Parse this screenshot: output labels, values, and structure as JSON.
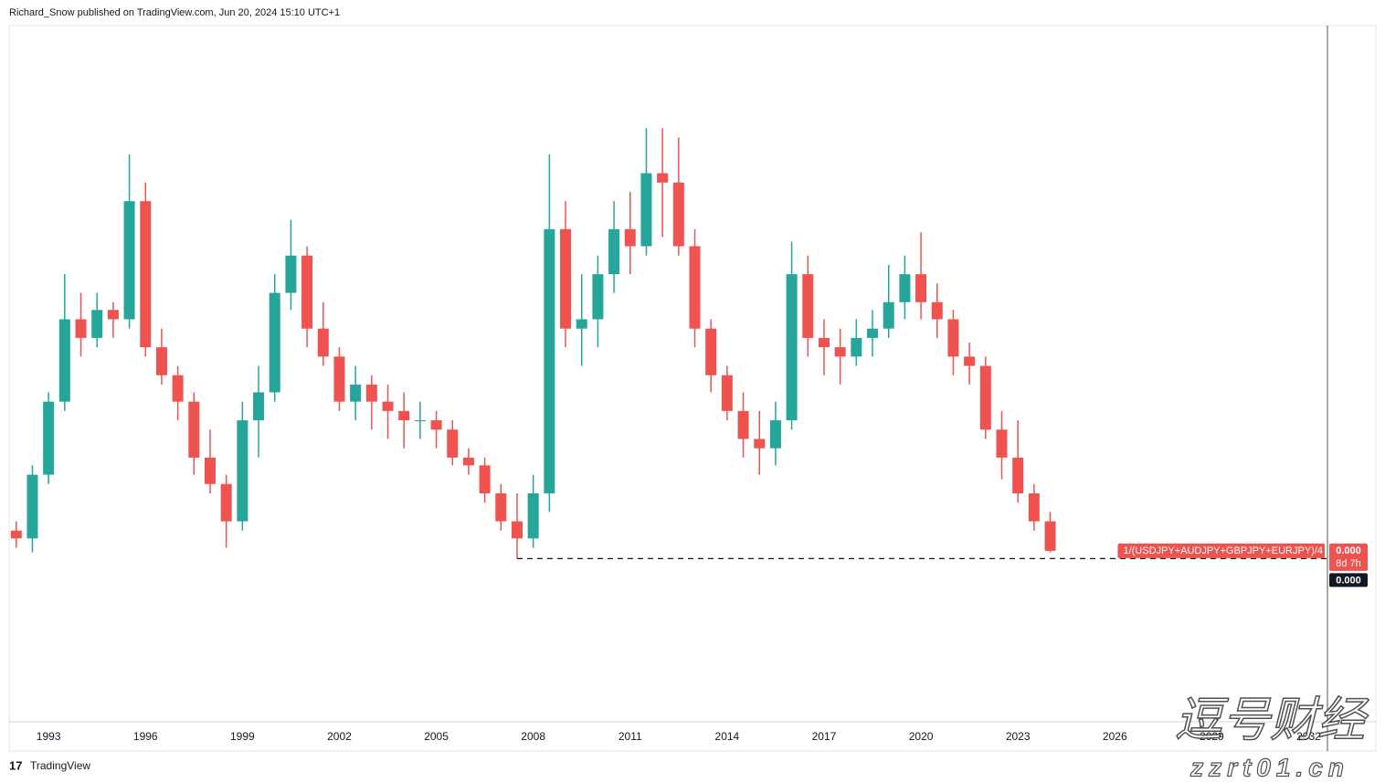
{
  "header": {
    "text": "Richard_Snow published on TradingView.com, Jun 20, 2024 15:10 UTC+1"
  },
  "chart_data": {
    "type": "candlestick",
    "x": [
      1992,
      1992.5,
      1993,
      1993.5,
      1994,
      1994.5,
      1995,
      1995.5,
      1996,
      1996.5,
      1997,
      1997.5,
      1998,
      1998.5,
      1999,
      1999.5,
      2000,
      2000.5,
      2001,
      2001.5,
      2002,
      2002.5,
      2003,
      2003.5,
      2004,
      2004.5,
      2005,
      2005.5,
      2006,
      2006.5,
      2007,
      2007.5,
      2008,
      2008.5,
      2009,
      2009.5,
      2010,
      2010.5,
      2011,
      2011.5,
      2012,
      2012.5,
      2013,
      2013.5,
      2014,
      2014.5,
      2015,
      2015.5,
      2016,
      2016.5,
      2017,
      2017.5,
      2018,
      2018.5,
      2019,
      2019.5,
      2020,
      2020.5,
      2021,
      2021.5,
      2022,
      2022.5,
      2023,
      2023.5,
      2024
    ],
    "open": [
      0.000404,
      0.000399,
      0.00044,
      0.000487,
      0.00054,
      0.000528,
      0.000546,
      0.00054,
      0.000616,
      0.000522,
      0.000504,
      0.000487,
      0.000451,
      0.000434,
      0.00041,
      0.000475,
      0.000493,
      0.000557,
      0.000581,
      0.000534,
      0.000516,
      0.000487,
      0.000498,
      0.000487,
      0.000481,
      0.000475,
      0.000475,
      0.000469,
      0.000451,
      0.000446,
      0.000428,
      0.00041,
      0.000399,
      0.000428,
      0.000598,
      0.000534,
      0.00054,
      0.000569,
      0.000598,
      0.000587,
      0.000634,
      0.000628,
      0.000587,
      0.000534,
      0.000504,
      0.000481,
      0.000463,
      0.000457,
      0.000475,
      0.000569,
      0.000528,
      0.000522,
      0.000516,
      0.000528,
      0.000534,
      0.000551,
      0.000569,
      0.000551,
      0.00054,
      0.000516,
      0.00051,
      0.000469,
      0.000451,
      0.000428,
      0.00041
    ],
    "high": [
      0.00041,
      0.000446,
      0.000493,
      0.000569,
      0.000557,
      0.000557,
      0.000551,
      0.000646,
      0.000628,
      0.000534,
      0.00051,
      0.000493,
      0.000469,
      0.00044,
      0.000487,
      0.00051,
      0.000569,
      0.000604,
      0.000587,
      0.000551,
      0.000522,
      0.00051,
      0.000504,
      0.000498,
      0.000493,
      0.000487,
      0.000481,
      0.000475,
      0.000457,
      0.000451,
      0.000434,
      0.000428,
      0.00044,
      0.000646,
      0.000616,
      0.000569,
      0.000581,
      0.000616,
      0.000622,
      0.000663,
      0.000663,
      0.000657,
      0.000598,
      0.00054,
      0.00051,
      0.000493,
      0.000481,
      0.000487,
      0.00059,
      0.000581,
      0.00054,
      0.000534,
      0.00054,
      0.000546,
      0.000575,
      0.000581,
      0.000596,
      0.000563,
      0.000546,
      0.000525,
      0.000516,
      0.000481,
      0.000475,
      0.000434,
      0.000416
    ],
    "low": [
      0.000393,
      0.00039,
      0.000434,
      0.000481,
      0.000516,
      0.000522,
      0.000528,
      0.000534,
      0.000516,
      0.000498,
      0.000475,
      0.00044,
      0.000428,
      0.000393,
      0.000404,
      0.000451,
      0.000487,
      0.000546,
      0.000522,
      0.00051,
      0.000481,
      0.000475,
      0.000469,
      0.000463,
      0.000457,
      0.000463,
      0.000457,
      0.000446,
      0.00044,
      0.000422,
      0.000404,
      0.000386,
      0.000393,
      0.000416,
      0.000522,
      0.00051,
      0.000522,
      0.000557,
      0.000569,
      0.000581,
      0.000593,
      0.000581,
      0.000522,
      0.000493,
      0.000475,
      0.000451,
      0.00044,
      0.000446,
      0.000469,
      0.000516,
      0.000504,
      0.000498,
      0.00051,
      0.000516,
      0.000528,
      0.00054,
      0.00054,
      0.000528,
      0.000504,
      0.000498,
      0.000463,
      0.000437,
      0.000422,
      0.000404,
      0.00039
    ],
    "close": [
      0.000399,
      0.00044,
      0.000487,
      0.00054,
      0.000528,
      0.000546,
      0.00054,
      0.000616,
      0.000522,
      0.000504,
      0.000487,
      0.000451,
      0.000434,
      0.00041,
      0.000475,
      0.000493,
      0.000557,
      0.000581,
      0.000534,
      0.000516,
      0.000487,
      0.000498,
      0.000487,
      0.000481,
      0.000475,
      0.000475,
      0.000469,
      0.000451,
      0.000446,
      0.000428,
      0.00041,
      0.000399,
      0.000428,
      0.000598,
      0.000534,
      0.00054,
      0.000569,
      0.000598,
      0.000587,
      0.000634,
      0.000628,
      0.000587,
      0.000534,
      0.000504,
      0.000481,
      0.000463,
      0.000457,
      0.000475,
      0.000569,
      0.000528,
      0.000522,
      0.000516,
      0.000528,
      0.000534,
      0.000551,
      0.000569,
      0.000551,
      0.00054,
      0.000516,
      0.00051,
      0.000469,
      0.000451,
      0.000428,
      0.00041,
      0.000391
    ],
    "up_color": "#26a69a",
    "down_color": "#ef5350",
    "xlim": [
      1991.78,
      2032.58
    ],
    "ylim": [
      0.000281,
      0.000729
    ],
    "xticks": [
      1993,
      1996,
      1999,
      2002,
      2005,
      2008,
      2011,
      2014,
      2017,
      2020,
      2023,
      2026,
      2029,
      2032
    ],
    "symbol": "1/(USDJPY+AUDJPY+GBPJPY+EURJPY)/4",
    "last_label": "0.000",
    "countdown": "8d 7h",
    "horizontal_line": {
      "value": 0.000386,
      "label": "0.000",
      "x_start": 2007.5
    }
  },
  "footer": {
    "logo": "TradingView"
  },
  "watermark": {
    "chinese": "逗号财经",
    "domain": "zzrt01.cn"
  }
}
